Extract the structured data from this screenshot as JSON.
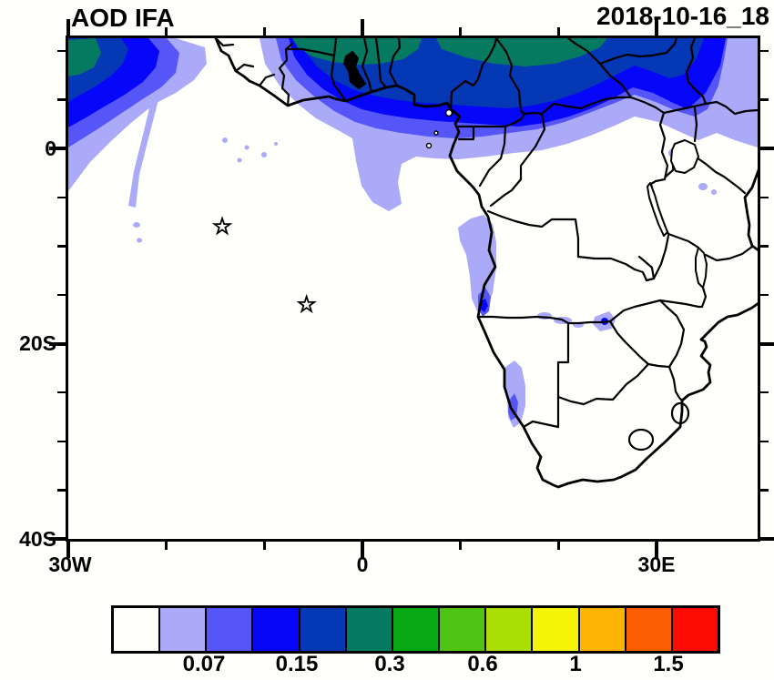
{
  "title": "AOD IFA",
  "timestamp": "2018-10-16_18",
  "chart_data": {
    "type": "heatmap",
    "subtype": "filled-contour-map",
    "variable": "AOD",
    "run_label": "IFA",
    "valid_datetime": "2018-10-16_18",
    "map_extent": {
      "lon_min_deg": -30,
      "lon_max_deg": 40,
      "lat_min_deg": -40,
      "lat_max_deg": 11
    },
    "x_axis": {
      "tick_labels": [
        "30W",
        "0",
        "30E"
      ],
      "major_ticks_deg": [
        -30,
        0,
        30
      ],
      "minor_ticks_deg": [
        -20,
        -10,
        10,
        20
      ]
    },
    "y_axis": {
      "tick_labels": [
        "0",
        "20S",
        "40S"
      ],
      "major_ticks_deg": [
        0,
        -20,
        -40
      ],
      "minor_ticks_deg": [
        10,
        5,
        -5,
        -10,
        -15,
        -25,
        -30,
        -35
      ]
    },
    "colorbar": {
      "levels": [
        0.05,
        0.07,
        0.1,
        0.15,
        0.2,
        0.3,
        0.4,
        0.6,
        0.8,
        1,
        1.2,
        1.5
      ],
      "tick_labels": [
        "0.07",
        "0.15",
        "0.3",
        "0.6",
        "1",
        "1.5"
      ],
      "colors": [
        "#fffffb",
        "#aaaaf8",
        "#5656f8",
        "#0606f8",
        "#0538b4",
        "#067a60",
        "#07a912",
        "#50c414",
        "#aade06",
        "#f4f408",
        "#fcb404",
        "#fc5e06",
        "#fa0c02"
      ]
    },
    "markers": [
      {
        "type": "star",
        "lon_deg": -14.3,
        "lat_deg": -8.0
      },
      {
        "type": "star",
        "lon_deg": -5.7,
        "lat_deg": -16.0
      }
    ],
    "field_summary": "Elevated AOD band (0.05-0.3) along 2N-11N across the tropical Atlantic, Gulf of Guinea, Nigeria-Cameroon and Central Africa with teal maxima (0.2-0.3) at the northern edge; weak plumes (0.05-0.1) off Angola and Namibia coasts; background below 0.05 elsewhere"
  }
}
